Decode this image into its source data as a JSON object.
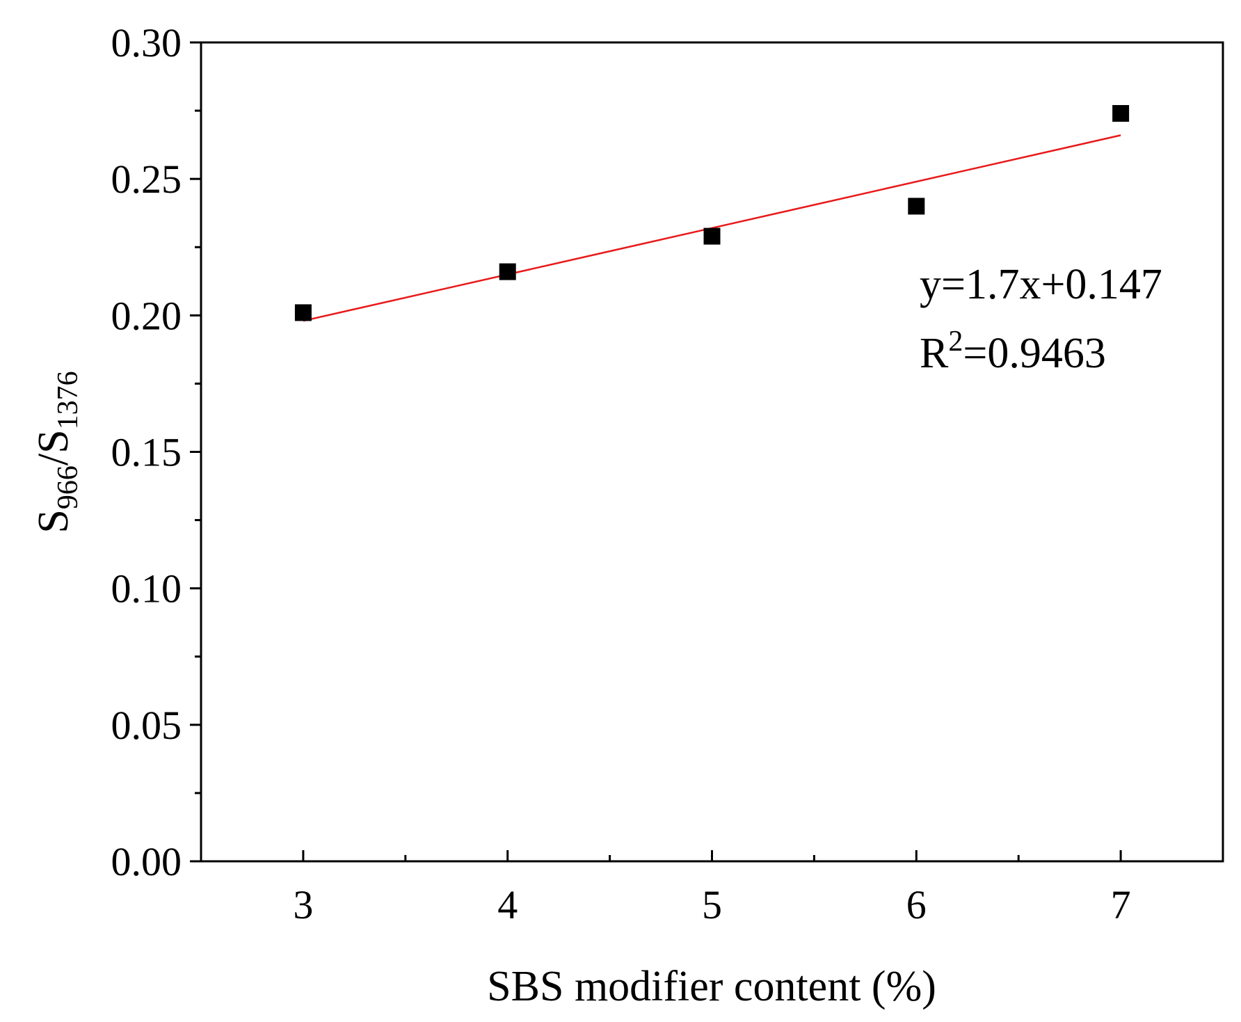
{
  "chart_data": {
    "type": "scatter",
    "title": "",
    "xlabel": "SBS modifier content (%)",
    "ylabel": {
      "base": "S",
      "sub1": "966",
      "sep": "/",
      "base2": "S",
      "sub2": "1376"
    },
    "xlim": [
      2.5,
      7.5
    ],
    "ylim": [
      0.0,
      0.3
    ],
    "x_ticks": [
      3,
      4,
      5,
      6,
      7
    ],
    "x_tick_labels": [
      "3",
      "4",
      "5",
      "6",
      "7"
    ],
    "y_ticks": [
      0.0,
      0.05,
      0.1,
      0.15,
      0.2,
      0.25,
      0.3
    ],
    "y_tick_labels": [
      "0.00",
      "0.05",
      "0.10",
      "0.15",
      "0.20",
      "0.25",
      "0.30"
    ],
    "grid": false,
    "series": [
      {
        "marker": "square",
        "color": "#000000",
        "points": [
          {
            "x": 3,
            "y": 0.201
          },
          {
            "x": 4,
            "y": 0.216
          },
          {
            "x": 5,
            "y": 0.229
          },
          {
            "x": 6,
            "y": 0.24
          },
          {
            "x": 7,
            "y": 0.274
          }
        ]
      }
    ],
    "fit_line": {
      "color": "#e8191a",
      "x": [
        3,
        7
      ],
      "y": [
        0.198,
        0.266
      ]
    },
    "annotations": {
      "equation": "y=1.7x+0.147",
      "r2_prefix": "R",
      "r2_sup": "2",
      "r2_value": "=0.9463"
    }
  }
}
